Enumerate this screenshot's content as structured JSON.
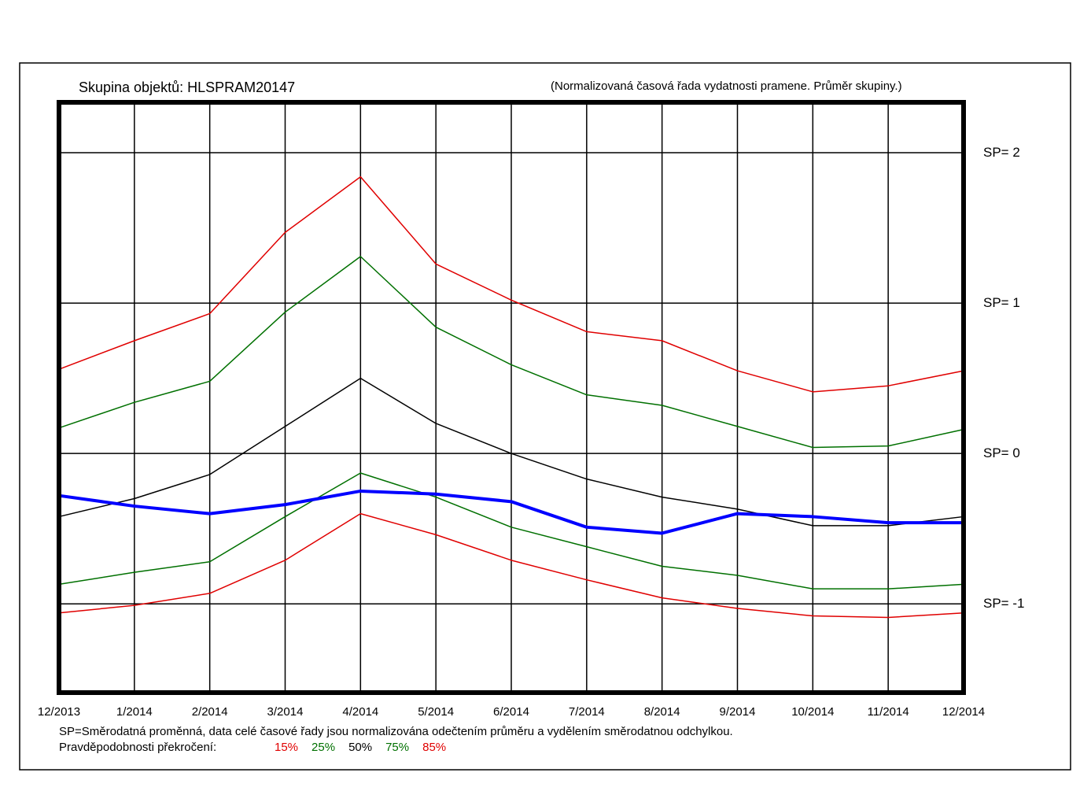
{
  "chart_data": {
    "type": "line",
    "title": "Skupina objektů: HLSPRAM20147",
    "subtitle": "(Normalizovaná časová řada vydatnosti pramene. Průměr skupiny.)",
    "x": [
      "12/2013",
      "1/2014",
      "2/2014",
      "3/2014",
      "4/2014",
      "5/2014",
      "6/2014",
      "7/2014",
      "8/2014",
      "9/2014",
      "10/2014",
      "11/2014",
      "12/2014"
    ],
    "ylim": [
      -1.59,
      2.335
    ],
    "y_ticks": [
      2,
      1,
      0,
      -1
    ],
    "y_tick_labels": [
      "SP= 2",
      "SP= 1",
      "SP= 0",
      "SP= -1"
    ],
    "grid": true,
    "series": [
      {
        "name": "15%",
        "color": "#e00000",
        "width": 1.5,
        "values": [
          0.56,
          0.75,
          0.93,
          1.47,
          1.84,
          1.26,
          1.02,
          0.81,
          0.75,
          0.55,
          0.41,
          0.45,
          0.55
        ]
      },
      {
        "name": "25%",
        "color": "#007000",
        "width": 1.5,
        "values": [
          0.17,
          0.34,
          0.48,
          0.94,
          1.31,
          0.84,
          0.59,
          0.39,
          0.32,
          0.18,
          0.04,
          0.05,
          0.16
        ]
      },
      {
        "name": "50%",
        "color": "#000000",
        "width": 1.5,
        "values": [
          -0.42,
          -0.3,
          -0.14,
          0.18,
          0.5,
          0.2,
          0.0,
          -0.17,
          -0.29,
          -0.37,
          -0.48,
          -0.48,
          -0.42
        ]
      },
      {
        "name": "75%",
        "color": "#007000",
        "width": 1.5,
        "values": [
          -0.87,
          -0.79,
          -0.72,
          -0.42,
          -0.13,
          -0.29,
          -0.49,
          -0.62,
          -0.75,
          -0.81,
          -0.9,
          -0.9,
          -0.87
        ]
      },
      {
        "name": "85%",
        "color": "#e00000",
        "width": 1.5,
        "values": [
          -1.06,
          -1.01,
          -0.93,
          -0.71,
          -0.4,
          -0.54,
          -0.71,
          -0.84,
          -0.96,
          -1.03,
          -1.08,
          -1.09,
          -1.06
        ]
      },
      {
        "name": "Průměr skupiny",
        "color": "#0000ff",
        "width": 4,
        "values": [
          -0.28,
          -0.35,
          -0.4,
          -0.34,
          -0.25,
          -0.27,
          -0.32,
          -0.49,
          -0.53,
          -0.4,
          -0.42,
          -0.46,
          -0.46
        ]
      }
    ],
    "footnote": "SP=Směrodatná proměnná, data celé časové řady jsou normalizována odečtením průměru a vydělením směrodatnou odchylkou.",
    "legend_label": "Pravděpodobnosti překročení:",
    "legend": [
      {
        "label": "15%",
        "color": "#e00000"
      },
      {
        "label": "25%",
        "color": "#007000"
      },
      {
        "label": "50%",
        "color": "#000000"
      },
      {
        "label": "75%",
        "color": "#007000"
      },
      {
        "label": "85%",
        "color": "#e00000"
      }
    ]
  }
}
